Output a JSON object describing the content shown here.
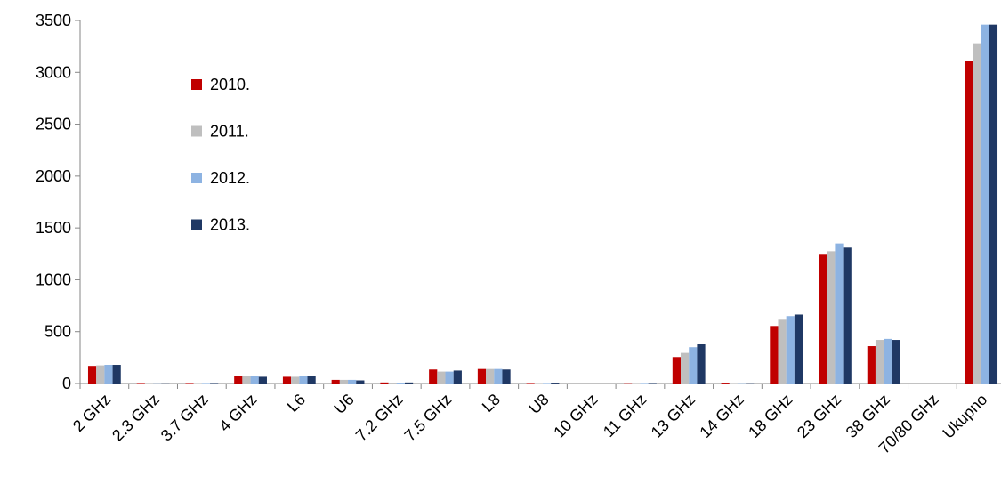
{
  "chart_data": {
    "type": "bar",
    "title": "",
    "xlabel": "",
    "ylabel": "",
    "ylim": [
      0,
      3500
    ],
    "yticks": [
      0,
      500,
      1000,
      1500,
      2000,
      2500,
      3000,
      3500
    ],
    "grid": false,
    "legend_position": "upper-left",
    "categories": [
      "2 GHz",
      "2.3 GHz",
      "3.7 GHz",
      "4 GHz",
      "L6",
      "U6",
      "7.2 GHz",
      "7.5 GHz",
      "L8",
      "U8",
      "10 GHz",
      "11 GHz",
      "13 GHz",
      "14 GHz",
      "18 GHz",
      "23 GHz",
      "38 GHz",
      "70/80 GHz",
      "Ukupno"
    ],
    "series": [
      {
        "name": "2010.",
        "color": "#c00000",
        "values": [
          170,
          5,
          5,
          70,
          65,
          35,
          10,
          135,
          140,
          5,
          0,
          3,
          255,
          8,
          555,
          1250,
          360,
          0,
          3110
        ]
      },
      {
        "name": "2011.",
        "color": "#bfbfbf",
        "values": [
          175,
          3,
          5,
          70,
          65,
          35,
          8,
          115,
          140,
          5,
          0,
          3,
          295,
          3,
          615,
          1275,
          420,
          0,
          3280
        ]
      },
      {
        "name": "2012.",
        "color": "#8db3e2",
        "values": [
          180,
          2,
          5,
          70,
          70,
          35,
          8,
          115,
          140,
          5,
          0,
          5,
          350,
          3,
          650,
          1350,
          430,
          0,
          3460
        ]
      },
      {
        "name": "2013.",
        "color": "#1f3864",
        "values": [
          180,
          2,
          5,
          65,
          70,
          30,
          10,
          125,
          135,
          8,
          0,
          5,
          385,
          3,
          665,
          1310,
          420,
          0,
          3460
        ]
      }
    ]
  }
}
